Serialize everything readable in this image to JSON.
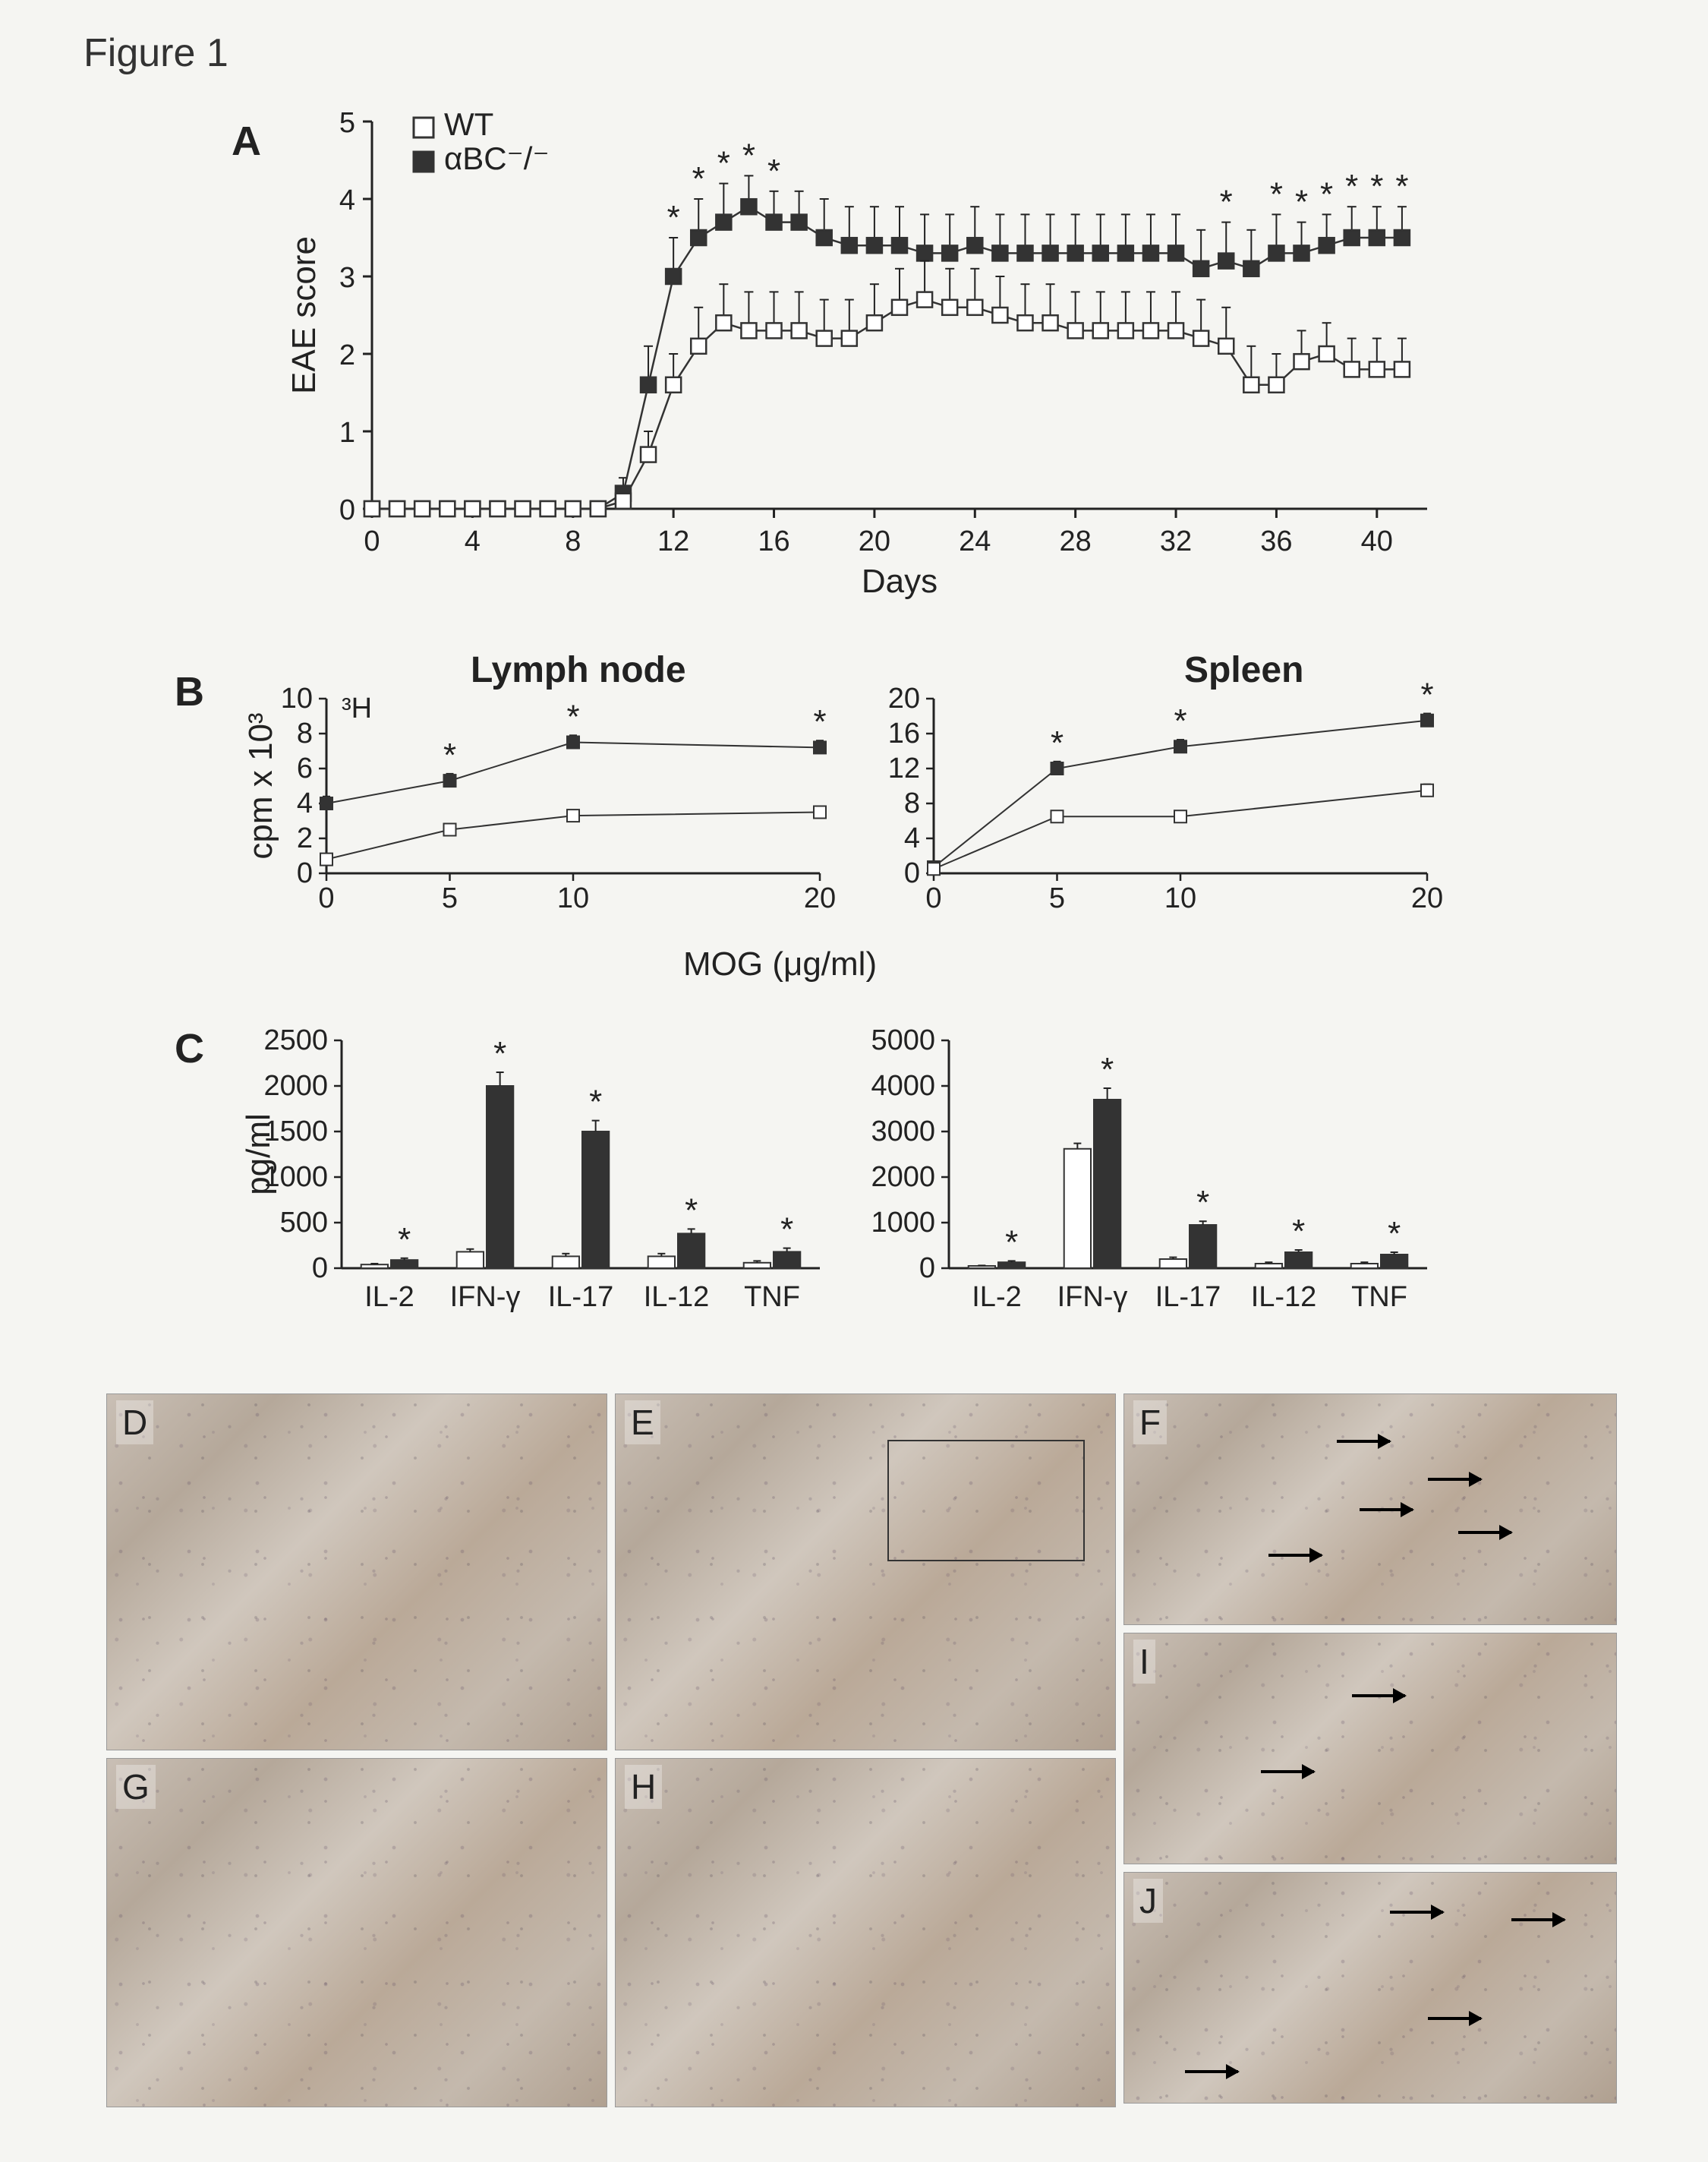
{
  "figure_title": "Figure 1",
  "panelA": {
    "label": "A",
    "ylabel": "EAE score",
    "xlabel": "Days",
    "ylim": [
      0,
      5
    ],
    "ytick_step": 1,
    "xlim": [
      0,
      42
    ],
    "xtick_step": 4,
    "legend": [
      {
        "label": "WT",
        "marker": "open-square",
        "fill": "#ffffff",
        "stroke": "#333333"
      },
      {
        "label": "αBC⁻/⁻",
        "marker": "filled-square",
        "fill": "#333333",
        "stroke": "#333333"
      }
    ],
    "series_wt": {
      "marker_fill": "#ffffff",
      "marker_stroke": "#333333",
      "line_color": "#333333",
      "x": [
        0,
        1,
        2,
        3,
        4,
        5,
        6,
        7,
        8,
        9,
        10,
        11,
        12,
        13,
        14,
        15,
        16,
        17,
        18,
        19,
        20,
        21,
        22,
        23,
        24,
        25,
        26,
        27,
        28,
        29,
        30,
        31,
        32,
        33,
        34,
        35,
        36,
        37,
        38,
        39,
        40,
        41
      ],
      "y": [
        0,
        0,
        0,
        0,
        0,
        0,
        0,
        0,
        0,
        0,
        0.1,
        0.7,
        1.6,
        2.1,
        2.4,
        2.3,
        2.3,
        2.3,
        2.2,
        2.2,
        2.4,
        2.6,
        2.7,
        2.6,
        2.6,
        2.5,
        2.4,
        2.4,
        2.3,
        2.3,
        2.3,
        2.3,
        2.3,
        2.2,
        2.1,
        1.6,
        1.6,
        1.9,
        2.0,
        1.8,
        1.8,
        1.8
      ],
      "err": [
        0,
        0,
        0,
        0,
        0,
        0,
        0,
        0,
        0,
        0,
        0.1,
        0.3,
        0.4,
        0.5,
        0.5,
        0.5,
        0.5,
        0.5,
        0.5,
        0.5,
        0.5,
        0.5,
        0.5,
        0.5,
        0.5,
        0.5,
        0.5,
        0.5,
        0.5,
        0.5,
        0.5,
        0.5,
        0.5,
        0.5,
        0.5,
        0.5,
        0.4,
        0.4,
        0.4,
        0.4,
        0.4,
        0.4
      ]
    },
    "series_ko": {
      "marker_fill": "#333333",
      "marker_stroke": "#333333",
      "line_color": "#333333",
      "x": [
        0,
        1,
        2,
        3,
        4,
        5,
        6,
        7,
        8,
        9,
        10,
        11,
        12,
        13,
        14,
        15,
        16,
        17,
        18,
        19,
        20,
        21,
        22,
        23,
        24,
        25,
        26,
        27,
        28,
        29,
        30,
        31,
        32,
        33,
        34,
        35,
        36,
        37,
        38,
        39,
        40,
        41
      ],
      "y": [
        0,
        0,
        0,
        0,
        0,
        0,
        0,
        0,
        0,
        0,
        0.2,
        1.6,
        3.0,
        3.5,
        3.7,
        3.9,
        3.7,
        3.7,
        3.5,
        3.4,
        3.4,
        3.4,
        3.3,
        3.3,
        3.4,
        3.3,
        3.3,
        3.3,
        3.3,
        3.3,
        3.3,
        3.3,
        3.3,
        3.1,
        3.2,
        3.1,
        3.3,
        3.3,
        3.4,
        3.5,
        3.5,
        3.5
      ],
      "err": [
        0,
        0,
        0,
        0,
        0,
        0,
        0,
        0,
        0,
        0,
        0.2,
        0.5,
        0.5,
        0.5,
        0.5,
        0.4,
        0.4,
        0.4,
        0.5,
        0.5,
        0.5,
        0.5,
        0.5,
        0.5,
        0.5,
        0.5,
        0.5,
        0.5,
        0.5,
        0.5,
        0.5,
        0.5,
        0.5,
        0.5,
        0.5,
        0.5,
        0.5,
        0.4,
        0.4,
        0.4,
        0.4,
        0.4
      ]
    },
    "sig_days": [
      12,
      13,
      14,
      15,
      16,
      34,
      36,
      37,
      38,
      39,
      40,
      41
    ]
  },
  "panelB": {
    "label": "B",
    "ylabel": "cpm x 10³",
    "xlabel": "MOG (μg/ml)",
    "superscript_label": "³H",
    "charts": [
      {
        "title": "Lymph node",
        "ylim": [
          0,
          10
        ],
        "ytick_step": 2,
        "xticks": [
          0,
          5,
          10,
          20
        ],
        "series_wt": {
          "y": [
            0.8,
            2.5,
            3.3,
            3.5
          ],
          "err": [
            0.3,
            0.3,
            0.3,
            0.3
          ],
          "fill": "#ffffff",
          "stroke": "#333"
        },
        "series_ko": {
          "y": [
            4.0,
            5.3,
            7.5,
            7.2
          ],
          "err": [
            0.4,
            0.4,
            0.4,
            0.4
          ],
          "fill": "#333",
          "stroke": "#333"
        },
        "sig_x": [
          5,
          10,
          20
        ]
      },
      {
        "title": "Spleen",
        "ylim": [
          0,
          20
        ],
        "ytick_step": 4,
        "xticks": [
          0,
          5,
          10,
          20
        ],
        "series_wt": {
          "y": [
            0.5,
            6.5,
            6.5,
            9.5
          ],
          "err": [
            0.3,
            0.5,
            0.5,
            0.7
          ],
          "fill": "#ffffff",
          "stroke": "#333"
        },
        "series_ko": {
          "y": [
            0.7,
            12.0,
            14.5,
            17.5
          ],
          "err": [
            0.3,
            0.8,
            0.8,
            0.8
          ],
          "fill": "#333",
          "stroke": "#333"
        },
        "sig_x": [
          5,
          10,
          20
        ]
      }
    ]
  },
  "panelC": {
    "label": "C",
    "ylabel": "pg/ml",
    "charts": [
      {
        "ylim": [
          0,
          2500
        ],
        "ytick_step": 500,
        "categories": [
          "IL-2",
          "IFN-γ",
          "IL-17",
          "IL-12",
          "TNF"
        ],
        "bar_wt": {
          "y": [
            40,
            180,
            130,
            130,
            60
          ],
          "err": [
            10,
            30,
            30,
            30,
            20
          ],
          "fill": "#ffffff",
          "stroke": "#333"
        },
        "bar_ko": {
          "y": [
            90,
            2000,
            1500,
            380,
            180
          ],
          "err": [
            20,
            150,
            120,
            50,
            40
          ],
          "fill": "#333",
          "stroke": "#333"
        },
        "sig": [
          true,
          true,
          true,
          true,
          true
        ]
      },
      {
        "ylim": [
          0,
          5000
        ],
        "ytick_step": 1000,
        "categories": [
          "IL-2",
          "IFN-γ",
          "IL-17",
          "IL-12",
          "TNF"
        ],
        "bar_wt": {
          "y": [
            50,
            2620,
            200,
            100,
            100
          ],
          "err": [
            10,
            120,
            40,
            30,
            30
          ],
          "fill": "#ffffff",
          "stroke": "#333"
        },
        "bar_ko": {
          "y": [
            130,
            3700,
            950,
            350,
            300
          ],
          "err": [
            30,
            250,
            80,
            50,
            50
          ],
          "fill": "#333",
          "stroke": "#333"
        },
        "sig": [
          true,
          true,
          true,
          true,
          true
        ]
      }
    ]
  },
  "histology": {
    "panels": [
      "D",
      "E",
      "F",
      "G",
      "H",
      "I",
      "J"
    ],
    "texture_colors": [
      "#c9bfb5",
      "#b5a89a",
      "#d0c7bd",
      "#baa998"
    ],
    "arrow_color": "#000000",
    "inset_in": "E"
  },
  "colors": {
    "background": "#f5f5f2",
    "axis": "#222222",
    "text": "#222222"
  }
}
